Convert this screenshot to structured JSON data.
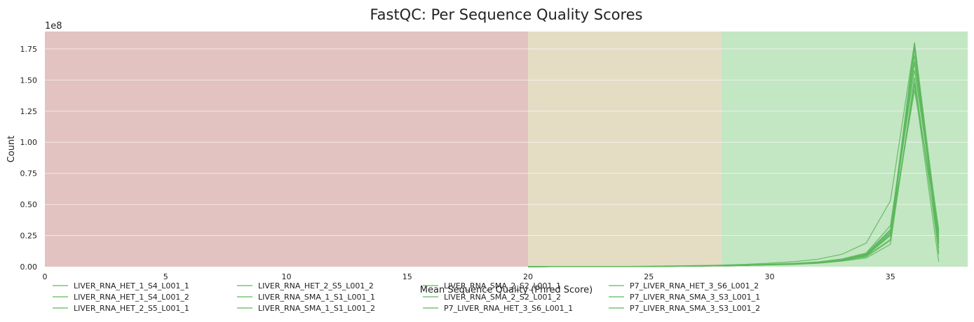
{
  "chart_data": {
    "type": "line",
    "title": "FastQC: Per Sequence Quality Scores",
    "xlabel": "Mean Sequence Quality (Phred Score)",
    "ylabel": "Count",
    "y_exponent_label": "1e8",
    "xlim": [
      0,
      38.2
    ],
    "ylim": [
      0,
      189000000
    ],
    "x_ticks": [
      0,
      5,
      10,
      15,
      20,
      25,
      30,
      35
    ],
    "y_ticks": [
      0,
      25000000,
      50000000,
      75000000,
      100000000,
      125000000,
      150000000,
      175000000
    ],
    "y_tick_labels": [
      "0.00",
      "0.25",
      "0.50",
      "0.75",
      "1.00",
      "1.25",
      "1.50",
      "1.75"
    ],
    "grid": true,
    "legend_position": "bottom",
    "line_color": "#5cb85c",
    "zones": [
      {
        "from": 0,
        "to": 20,
        "color": "#e3c2c2"
      },
      {
        "from": 20,
        "to": 28,
        "color": "#e5dcc4"
      },
      {
        "from": 28,
        "to": 38.2,
        "color": "#c3e6c3"
      }
    ],
    "x": [
      20,
      21,
      22,
      23,
      24,
      25,
      26,
      27,
      28,
      29,
      30,
      31,
      32,
      33,
      34,
      35,
      36,
      37
    ],
    "series": [
      {
        "name": "LIVER_RNA_HET_1_S4_L001_1",
        "values": [
          20000,
          30000,
          50000,
          80000,
          120000,
          200000,
          300000,
          500000,
          700000,
          1000000,
          1500000,
          2000000,
          3000000,
          5000000,
          9000000,
          25000000,
          148000000,
          24000000
        ]
      },
      {
        "name": "LIVER_RNA_HET_1_S4_L001_2",
        "values": [
          25000,
          35000,
          60000,
          90000,
          140000,
          230000,
          350000,
          550000,
          800000,
          1100000,
          1700000,
          2300000,
          3300000,
          5500000,
          10000000,
          28000000,
          142000000,
          28000000
        ]
      },
      {
        "name": "LIVER_RNA_HET_2_S5_L001_1",
        "values": [
          20000,
          30000,
          50000,
          80000,
          120000,
          200000,
          300000,
          500000,
          700000,
          1000000,
          1600000,
          2100000,
          3100000,
          5200000,
          9500000,
          27000000,
          165000000,
          20000000
        ]
      },
      {
        "name": "LIVER_RNA_HET_2_S5_L001_2",
        "values": [
          30000,
          40000,
          70000,
          100000,
          160000,
          260000,
          380000,
          600000,
          850000,
          1200000,
          1800000,
          2400000,
          3500000,
          5800000,
          10500000,
          30000000,
          158000000,
          27000000
        ]
      },
      {
        "name": "LIVER_RNA_SMA_1_S1_L001_1",
        "values": [
          20000,
          30000,
          50000,
          80000,
          120000,
          200000,
          300000,
          500000,
          700000,
          1000000,
          1500000,
          2000000,
          2900000,
          4800000,
          8500000,
          22000000,
          175000000,
          15000000
        ]
      },
      {
        "name": "LIVER_RNA_SMA_1_S1_L001_2",
        "values": [
          25000,
          35000,
          60000,
          90000,
          140000,
          230000,
          350000,
          550000,
          800000,
          1100000,
          1700000,
          2300000,
          3300000,
          5400000,
          9800000,
          26000000,
          170000000,
          22000000
        ]
      },
      {
        "name": "LIVER_RNA_SMA_2_S2_L001_1",
        "values": [
          20000,
          30000,
          50000,
          80000,
          120000,
          200000,
          300000,
          500000,
          700000,
          1000000,
          1500000,
          2000000,
          3000000,
          5000000,
          9000000,
          25000000,
          180000000,
          10000000
        ]
      },
      {
        "name": "LIVER_RNA_SMA_2_S2_L001_2",
        "values": [
          25000,
          35000,
          60000,
          90000,
          140000,
          230000,
          350000,
          550000,
          800000,
          1100000,
          1700000,
          2200000,
          3200000,
          5300000,
          9700000,
          29000000,
          178000000,
          18000000
        ]
      },
      {
        "name": "P7_LIVER_RNA_HET_3_S6_L001_1",
        "values": [
          20000,
          30000,
          50000,
          80000,
          120000,
          200000,
          300000,
          500000,
          700000,
          1000000,
          1400000,
          1900000,
          2700000,
          4500000,
          7000000,
          18000000,
          152000000,
          12000000
        ]
      },
      {
        "name": "P7_LIVER_RNA_HET_3_S6_L001_2",
        "values": [
          25000,
          35000,
          60000,
          90000,
          140000,
          230000,
          350000,
          550000,
          800000,
          1100000,
          1600000,
          2200000,
          3100000,
          5000000,
          8000000,
          21000000,
          146000000,
          4000000
        ]
      },
      {
        "name": "P7_LIVER_RNA_SMA_3_S3_L001_1",
        "values": [
          40000,
          60000,
          100000,
          150000,
          250000,
          400000,
          600000,
          900000,
          1300000,
          1900000,
          2800000,
          4000000,
          6000000,
          10000000,
          19000000,
          53000000,
          180000000,
          25000000
        ]
      },
      {
        "name": "P7_LIVER_RNA_SMA_3_S3_L001_2",
        "values": [
          30000,
          45000,
          80000,
          120000,
          190000,
          300000,
          450000,
          700000,
          1000000,
          1400000,
          2000000,
          2700000,
          3900000,
          6300000,
          11000000,
          33000000,
          164000000,
          30000000
        ]
      }
    ]
  }
}
